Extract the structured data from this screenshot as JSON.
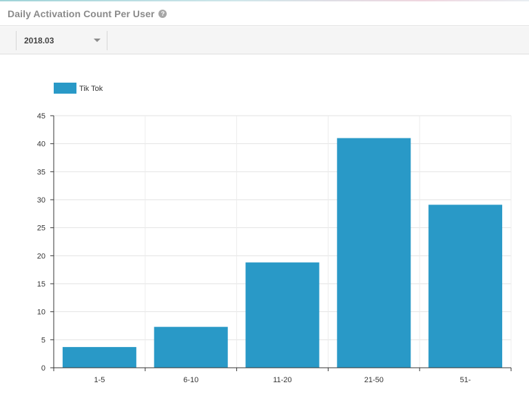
{
  "header": {
    "title": "Daily Activation Count Per User",
    "help_icon": "question-circle-icon"
  },
  "filters": {
    "period_value": "2018.03"
  },
  "chart_data": {
    "type": "bar",
    "categories": [
      "1-5",
      "6-10",
      "11-20",
      "21-50",
      "51-"
    ],
    "series": [
      {
        "name": "Tik Tok",
        "color": "#2999c7",
        "values": [
          3.7,
          7.3,
          18.8,
          41.0,
          29.1
        ]
      }
    ],
    "title": "",
    "xlabel": "",
    "ylabel": "",
    "ylim": [
      0,
      45
    ],
    "yticks": [
      0,
      5,
      10,
      15,
      20,
      25,
      30,
      35,
      40,
      45
    ],
    "grid": true,
    "legend": "top-left"
  }
}
